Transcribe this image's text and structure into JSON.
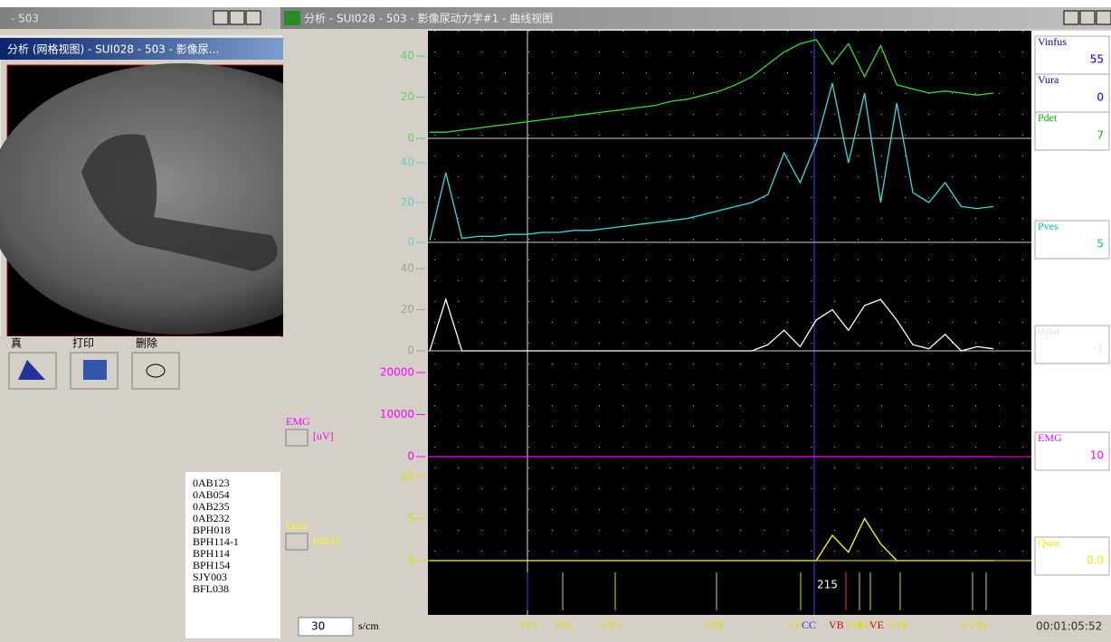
{
  "left_window": {
    "title": "- 503",
    "inner_title": "分析 (网格视图) - SUI028 - 503 - 影像尿...",
    "toolbar": [
      "真",
      "打印",
      "删除"
    ],
    "records": [
      "0AB123",
      "0AB054",
      "0AB235",
      "0AB232",
      "BPH018",
      "BPH114-1",
      "BPH114",
      "BPH154",
      "SJY003",
      "BFL038"
    ]
  },
  "main_window": {
    "title": "分析 - SUI028 - 503 - 影像尿动力学#1 - 曲线视图",
    "channels": [
      {
        "color": "#33dd33",
        "tick_color": "#66cc66",
        "ticks": [
          0,
          20,
          40
        ],
        "values": [
          3,
          3,
          4,
          5,
          6,
          7,
          8,
          9,
          10,
          11,
          12,
          13,
          14,
          15,
          16,
          18,
          19,
          21,
          23,
          26,
          30,
          36,
          42,
          46,
          48,
          36,
          46,
          30,
          45,
          26,
          24,
          22,
          23,
          22,
          21,
          22
        ]
      },
      {
        "color": "#33dddd",
        "tick_color": "#66cccc",
        "ticks": [
          0,
          20,
          40
        ],
        "values": [
          1,
          35,
          2,
          3,
          3,
          4,
          4,
          5,
          5,
          6,
          6,
          7,
          8,
          9,
          10,
          11,
          12,
          14,
          16,
          18,
          20,
          24,
          45,
          30,
          50,
          80,
          40,
          75,
          20,
          70,
          25,
          20,
          30,
          18,
          17,
          18
        ]
      },
      {
        "color": "#ffffff",
        "tick_color": "#a0a0a0",
        "ticks": [
          0,
          20,
          40
        ],
        "values": [
          0,
          25,
          0,
          0,
          0,
          0,
          0,
          0,
          0,
          0,
          0,
          0,
          0,
          0,
          0,
          0,
          0,
          0,
          0,
          0,
          0,
          3,
          10,
          2,
          15,
          20,
          10,
          22,
          25,
          15,
          3,
          1,
          8,
          0,
          2,
          1
        ]
      },
      {
        "label": "EMG",
        "unit": "[uV]",
        "color": "#ff00ff",
        "tick_color": "#ff00ff",
        "ticks": [
          0,
          10000,
          20000
        ],
        "values": [
          0,
          0,
          0,
          0,
          0,
          0,
          0,
          0,
          0,
          0,
          0,
          0
        ]
      },
      {
        "label": "Qura",
        "unit": "[ml/s]",
        "color": "#ffff00",
        "tick_color": "#dddd00",
        "ticks": [
          0,
          5,
          10
        ],
        "values": [
          0,
          0,
          0,
          0,
          0,
          0,
          0,
          0,
          0,
          0,
          0,
          0,
          0,
          0,
          0,
          0,
          0,
          0,
          0,
          0,
          0,
          0,
          0,
          0,
          0,
          3,
          1,
          5,
          2,
          0,
          0,
          0,
          0,
          0,
          0,
          0
        ]
      }
    ],
    "cursor_label": "215",
    "speed": "30",
    "speed_unit": "s/cm",
    "events": [
      "VP1",
      "VP2",
      "VP3",
      "VP4",
      "VP",
      "CC",
      "VB",
      "VM",
      "VF",
      "VE",
      "VP8",
      "VVP1"
    ],
    "time": "00:01:05:52",
    "readouts": [
      {
        "label": "Vinfus",
        "value": "55",
        "color": "#0000cc"
      },
      {
        "label": "Vura",
        "value": "0",
        "color": "#0000cc"
      },
      {
        "label": "Pdet",
        "value": "7",
        "color": "#00bb00"
      },
      {
        "label": "Pves",
        "value": "5",
        "color": "#00c0c0"
      },
      {
        "label": "Pabd",
        "value": "-1",
        "color": "#e4e4e4"
      },
      {
        "label": "EMG",
        "value": "10",
        "color": "#ff00ff"
      },
      {
        "label": "Qura",
        "value": "0.0",
        "color": "#eeee00"
      }
    ]
  }
}
